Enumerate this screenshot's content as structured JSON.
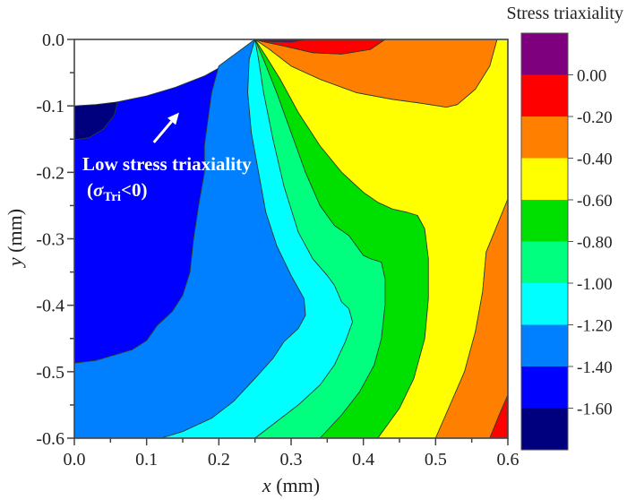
{
  "chart_data": {
    "type": "contour",
    "title": "",
    "xlabel_var": "x",
    "xlabel_unit": " (mm)",
    "ylabel_var": "y",
    "ylabel_unit": " (mm)",
    "xlim": [
      0.0,
      0.6
    ],
    "ylim": [
      -0.6,
      0.0
    ],
    "x_ticks": [
      "0.0",
      "0.1",
      "0.2",
      "0.3",
      "0.4",
      "0.5",
      "0.6"
    ],
    "y_ticks": [
      "0.0",
      "-0.1",
      "-0.2",
      "-0.3",
      "-0.4",
      "-0.5",
      "-0.6"
    ],
    "x_tick_values": [
      0.0,
      0.1,
      0.2,
      0.3,
      0.4,
      0.5,
      0.6
    ],
    "y_tick_values": [
      0.0,
      -0.1,
      -0.2,
      -0.3,
      -0.4,
      -0.5,
      -0.6
    ],
    "grid": false,
    "colorbar": {
      "title": "Stress triaxiality",
      "tick_labels": [
        "0.00",
        "-0.20",
        "-0.40",
        "-0.60",
        "-0.80",
        "-1.00",
        "-1.20",
        "-1.40",
        "-1.60"
      ],
      "levels": [
        {
          "range": "> 0.00",
          "color": "#7f007f"
        },
        {
          "range": "-0.20 to 0.00",
          "color": "#ff0000"
        },
        {
          "range": "-0.40 to -0.20",
          "color": "#ff7f00"
        },
        {
          "range": "-0.60 to -0.40",
          "color": "#ffff00"
        },
        {
          "range": "-0.80 to -0.60",
          "color": "#00e000"
        },
        {
          "range": "-1.00 to -0.80",
          "color": "#00ff7f"
        },
        {
          "range": "-1.20 to -1.00",
          "color": "#00ffff"
        },
        {
          "range": "-1.40 to -1.20",
          "color": "#007fff"
        },
        {
          "range": "-1.60 to -1.40",
          "color": "#0000ff"
        },
        {
          "range": "< -1.60",
          "color": "#00007f"
        }
      ]
    },
    "notch": {
      "description": "Circular notch region (no data) from (0, -0.1) to tip at (0.25, 0.0)",
      "tip": [
        0.25,
        0.0
      ],
      "root": [
        0.0,
        -0.1
      ]
    },
    "regions": [
      {
        "level": "< -1.60",
        "color": "#00007f",
        "points": [
          [
            0.0,
            -0.1
          ],
          [
            0.03,
            -0.098
          ],
          [
            0.06,
            -0.094
          ],
          [
            0.055,
            -0.115
          ],
          [
            0.04,
            -0.135
          ],
          [
            0.02,
            -0.148
          ],
          [
            0.0,
            -0.151
          ]
        ]
      },
      {
        "level": "-1.60 to -1.40",
        "color": "#0000ff",
        "points": [
          [
            0.0,
            -0.151
          ],
          [
            0.02,
            -0.148
          ],
          [
            0.04,
            -0.135
          ],
          [
            0.055,
            -0.115
          ],
          [
            0.06,
            -0.094
          ],
          [
            0.1,
            -0.085
          ],
          [
            0.14,
            -0.072
          ],
          [
            0.18,
            -0.055
          ],
          [
            0.21,
            -0.037
          ],
          [
            0.235,
            -0.017
          ],
          [
            0.25,
            0.0
          ],
          [
            0.225,
            -0.02
          ],
          [
            0.2,
            -0.04
          ],
          [
            0.19,
            -0.08
          ],
          [
            0.185,
            -0.12
          ],
          [
            0.18,
            -0.16
          ],
          [
            0.18,
            -0.2
          ],
          [
            0.172,
            -0.25
          ],
          [
            0.165,
            -0.3
          ],
          [
            0.16,
            -0.35
          ],
          [
            0.15,
            -0.385
          ],
          [
            0.135,
            -0.41
          ],
          [
            0.115,
            -0.43
          ],
          [
            0.1,
            -0.453
          ],
          [
            0.08,
            -0.467
          ],
          [
            0.03,
            -0.483
          ],
          [
            0.0,
            -0.487
          ]
        ]
      },
      {
        "level": "-1.40 to -1.20",
        "color": "#007fff",
        "points": [
          [
            0.25,
            0.0
          ],
          [
            0.225,
            -0.02
          ],
          [
            0.2,
            -0.04
          ],
          [
            0.19,
            -0.08
          ],
          [
            0.185,
            -0.12
          ],
          [
            0.18,
            -0.16
          ],
          [
            0.18,
            -0.2
          ],
          [
            0.172,
            -0.25
          ],
          [
            0.165,
            -0.3
          ],
          [
            0.16,
            -0.35
          ],
          [
            0.15,
            -0.385
          ],
          [
            0.135,
            -0.41
          ],
          [
            0.115,
            -0.43
          ],
          [
            0.1,
            -0.453
          ],
          [
            0.08,
            -0.467
          ],
          [
            0.03,
            -0.483
          ],
          [
            0.0,
            -0.487
          ],
          [
            0.0,
            -0.6
          ],
          [
            0.12,
            -0.6
          ],
          [
            0.15,
            -0.59
          ],
          [
            0.19,
            -0.57
          ],
          [
            0.22,
            -0.545
          ],
          [
            0.25,
            -0.51
          ],
          [
            0.275,
            -0.48
          ],
          [
            0.29,
            -0.455
          ],
          [
            0.31,
            -0.435
          ],
          [
            0.32,
            -0.415
          ],
          [
            0.318,
            -0.39
          ],
          [
            0.3,
            -0.355
          ],
          [
            0.28,
            -0.31
          ],
          [
            0.265,
            -0.26
          ],
          [
            0.255,
            -0.2
          ],
          [
            0.245,
            -0.14
          ],
          [
            0.24,
            -0.08
          ],
          [
            0.242,
            -0.03
          ]
        ]
      },
      {
        "level": "-1.20 to -1.00",
        "color": "#00ffff",
        "points": [
          [
            0.25,
            0.0
          ],
          [
            0.242,
            -0.03
          ],
          [
            0.24,
            -0.08
          ],
          [
            0.245,
            -0.14
          ],
          [
            0.255,
            -0.2
          ],
          [
            0.265,
            -0.26
          ],
          [
            0.28,
            -0.31
          ],
          [
            0.3,
            -0.355
          ],
          [
            0.318,
            -0.39
          ],
          [
            0.32,
            -0.415
          ],
          [
            0.31,
            -0.435
          ],
          [
            0.29,
            -0.455
          ],
          [
            0.275,
            -0.48
          ],
          [
            0.25,
            -0.51
          ],
          [
            0.22,
            -0.545
          ],
          [
            0.19,
            -0.57
          ],
          [
            0.15,
            -0.59
          ],
          [
            0.12,
            -0.6
          ],
          [
            0.25,
            -0.6
          ],
          [
            0.28,
            -0.575
          ],
          [
            0.31,
            -0.55
          ],
          [
            0.34,
            -0.52
          ],
          [
            0.36,
            -0.49
          ],
          [
            0.375,
            -0.455
          ],
          [
            0.385,
            -0.425
          ],
          [
            0.38,
            -0.405
          ],
          [
            0.37,
            -0.395
          ],
          [
            0.36,
            -0.37
          ],
          [
            0.35,
            -0.355
          ],
          [
            0.33,
            -0.33
          ],
          [
            0.31,
            -0.29
          ],
          [
            0.29,
            -0.22
          ],
          [
            0.275,
            -0.15
          ],
          [
            0.262,
            -0.08
          ],
          [
            0.255,
            -0.03
          ]
        ]
      },
      {
        "level": "-1.00 to -0.80",
        "color": "#00ff7f",
        "points": [
          [
            0.25,
            0.0
          ],
          [
            0.255,
            -0.03
          ],
          [
            0.262,
            -0.08
          ],
          [
            0.275,
            -0.15
          ],
          [
            0.29,
            -0.22
          ],
          [
            0.31,
            -0.29
          ],
          [
            0.33,
            -0.33
          ],
          [
            0.35,
            -0.355
          ],
          [
            0.36,
            -0.37
          ],
          [
            0.37,
            -0.395
          ],
          [
            0.38,
            -0.405
          ],
          [
            0.385,
            -0.425
          ],
          [
            0.375,
            -0.455
          ],
          [
            0.36,
            -0.49
          ],
          [
            0.34,
            -0.52
          ],
          [
            0.31,
            -0.55
          ],
          [
            0.28,
            -0.575
          ],
          [
            0.25,
            -0.6
          ],
          [
            0.34,
            -0.6
          ],
          [
            0.37,
            -0.565
          ],
          [
            0.395,
            -0.53
          ],
          [
            0.415,
            -0.49
          ],
          [
            0.425,
            -0.45
          ],
          [
            0.43,
            -0.4
          ],
          [
            0.43,
            -0.36
          ],
          [
            0.425,
            -0.335
          ],
          [
            0.41,
            -0.33
          ],
          [
            0.4,
            -0.325
          ],
          [
            0.39,
            -0.31
          ],
          [
            0.38,
            -0.295
          ],
          [
            0.36,
            -0.28
          ],
          [
            0.34,
            -0.25
          ],
          [
            0.32,
            -0.2
          ],
          [
            0.3,
            -0.14
          ],
          [
            0.28,
            -0.08
          ],
          [
            0.262,
            -0.03
          ]
        ]
      },
      {
        "level": "-0.80 to -0.60",
        "color": "#00e000",
        "points": [
          [
            0.25,
            0.0
          ],
          [
            0.262,
            -0.03
          ],
          [
            0.28,
            -0.08
          ],
          [
            0.3,
            -0.14
          ],
          [
            0.32,
            -0.2
          ],
          [
            0.34,
            -0.25
          ],
          [
            0.36,
            -0.28
          ],
          [
            0.38,
            -0.295
          ],
          [
            0.39,
            -0.31
          ],
          [
            0.4,
            -0.325
          ],
          [
            0.41,
            -0.33
          ],
          [
            0.425,
            -0.335
          ],
          [
            0.43,
            -0.36
          ],
          [
            0.43,
            -0.4
          ],
          [
            0.425,
            -0.45
          ],
          [
            0.415,
            -0.49
          ],
          [
            0.395,
            -0.53
          ],
          [
            0.37,
            -0.565
          ],
          [
            0.34,
            -0.6
          ],
          [
            0.42,
            -0.6
          ],
          [
            0.45,
            -0.555
          ],
          [
            0.47,
            -0.51
          ],
          [
            0.485,
            -0.45
          ],
          [
            0.49,
            -0.39
          ],
          [
            0.49,
            -0.33
          ],
          [
            0.485,
            -0.285
          ],
          [
            0.475,
            -0.265
          ],
          [
            0.46,
            -0.26
          ],
          [
            0.44,
            -0.255
          ],
          [
            0.42,
            -0.245
          ],
          [
            0.4,
            -0.23
          ],
          [
            0.37,
            -0.2
          ],
          [
            0.34,
            -0.16
          ],
          [
            0.31,
            -0.11
          ],
          [
            0.285,
            -0.06
          ],
          [
            0.265,
            -0.025
          ]
        ]
      },
      {
        "level": "-0.60 to -0.40",
        "color": "#ffff00",
        "points": [
          [
            0.25,
            0.0
          ],
          [
            0.265,
            -0.025
          ],
          [
            0.285,
            -0.06
          ],
          [
            0.31,
            -0.11
          ],
          [
            0.34,
            -0.16
          ],
          [
            0.37,
            -0.2
          ],
          [
            0.4,
            -0.23
          ],
          [
            0.42,
            -0.245
          ],
          [
            0.44,
            -0.255
          ],
          [
            0.46,
            -0.26
          ],
          [
            0.475,
            -0.265
          ],
          [
            0.485,
            -0.285
          ],
          [
            0.49,
            -0.33
          ],
          [
            0.49,
            -0.39
          ],
          [
            0.485,
            -0.45
          ],
          [
            0.47,
            -0.51
          ],
          [
            0.45,
            -0.555
          ],
          [
            0.42,
            -0.6
          ],
          [
            0.5,
            -0.6
          ],
          [
            0.52,
            -0.55
          ],
          [
            0.54,
            -0.5
          ],
          [
            0.555,
            -0.44
          ],
          [
            0.565,
            -0.38
          ],
          [
            0.57,
            -0.32
          ],
          [
            0.6,
            -0.24
          ],
          [
            0.6,
            0.0
          ],
          [
            0.585,
            0.0
          ],
          [
            0.575,
            -0.04
          ],
          [
            0.555,
            -0.075
          ],
          [
            0.53,
            -0.098
          ],
          [
            0.515,
            -0.102
          ],
          [
            0.48,
            -0.096
          ],
          [
            0.44,
            -0.09
          ],
          [
            0.39,
            -0.08
          ],
          [
            0.34,
            -0.06
          ],
          [
            0.3,
            -0.04
          ],
          [
            0.27,
            -0.015
          ]
        ]
      },
      {
        "level": "-0.40 to -0.20",
        "color": "#ff7f00",
        "points": [
          [
            0.25,
            0.0
          ],
          [
            0.27,
            -0.015
          ],
          [
            0.3,
            -0.04
          ],
          [
            0.34,
            -0.06
          ],
          [
            0.39,
            -0.08
          ],
          [
            0.44,
            -0.09
          ],
          [
            0.48,
            -0.096
          ],
          [
            0.515,
            -0.102
          ],
          [
            0.53,
            -0.098
          ],
          [
            0.555,
            -0.075
          ],
          [
            0.575,
            -0.04
          ],
          [
            0.585,
            0.0
          ],
          [
            0.43,
            0.0
          ],
          [
            0.41,
            -0.015
          ],
          [
            0.37,
            -0.022
          ],
          [
            0.33,
            -0.02
          ],
          [
            0.29,
            -0.01
          ],
          [
            0.26,
            -0.003
          ]
        ]
      },
      {
        "level": "-0.40 to -0.20 (corner)",
        "color": "#ff7f00",
        "points": [
          [
            0.6,
            -0.24
          ],
          [
            0.57,
            -0.32
          ],
          [
            0.565,
            -0.38
          ],
          [
            0.555,
            -0.44
          ],
          [
            0.54,
            -0.5
          ],
          [
            0.52,
            -0.55
          ],
          [
            0.5,
            -0.6
          ],
          [
            0.575,
            -0.6
          ],
          [
            0.59,
            -0.56
          ],
          [
            0.6,
            -0.535
          ]
        ]
      },
      {
        "level": "-0.20 to 0.00",
        "color": "#ff0000",
        "points": [
          [
            0.25,
            0.0
          ],
          [
            0.26,
            -0.003
          ],
          [
            0.29,
            -0.01
          ],
          [
            0.33,
            -0.02
          ],
          [
            0.37,
            -0.022
          ],
          [
            0.41,
            -0.015
          ],
          [
            0.43,
            0.0
          ],
          [
            0.32,
            0.0
          ],
          [
            0.3,
            -0.004
          ],
          [
            0.27,
            -0.003
          ]
        ]
      },
      {
        "level": "-0.20 to 0.00 (corner)",
        "color": "#ff0000",
        "points": [
          [
            0.6,
            -0.535
          ],
          [
            0.59,
            -0.56
          ],
          [
            0.575,
            -0.6
          ],
          [
            0.6,
            -0.6
          ]
        ]
      },
      {
        "level": "> 0.00",
        "color": "#7f007f",
        "points": [
          [
            0.25,
            0.0
          ],
          [
            0.27,
            -0.003
          ],
          [
            0.3,
            -0.004
          ],
          [
            0.32,
            0.0
          ]
        ]
      }
    ],
    "annotation": {
      "line1": "Low stress triaxiality",
      "line2_open": "(",
      "line2_sigma": "σ",
      "line2_sub": "Tri",
      "line2_close": "<0)",
      "arrow_from": [
        0.11,
        -0.155
      ],
      "arrow_to": [
        0.145,
        -0.11
      ]
    }
  }
}
